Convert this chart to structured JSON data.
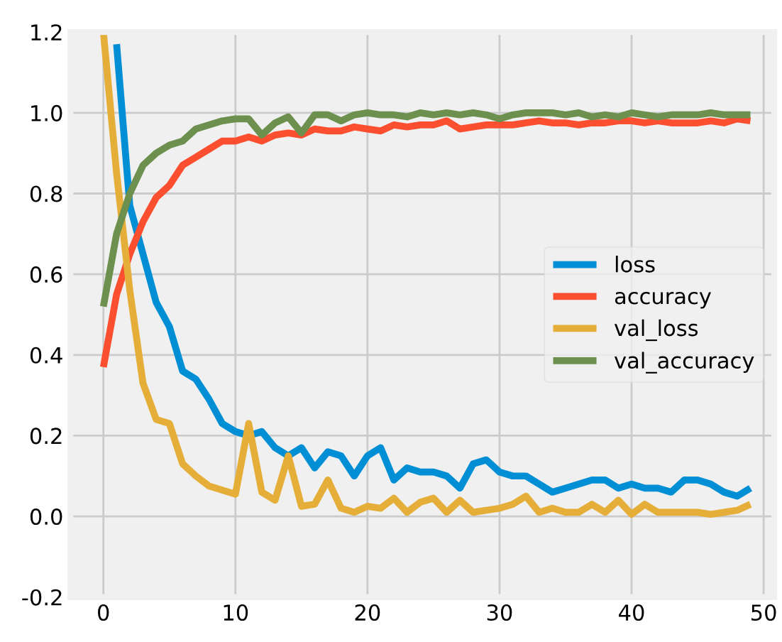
{
  "chart_data": {
    "type": "line",
    "x": [
      0,
      1,
      2,
      3,
      4,
      5,
      6,
      7,
      8,
      9,
      10,
      11,
      12,
      13,
      14,
      15,
      16,
      17,
      18,
      19,
      20,
      21,
      22,
      23,
      24,
      25,
      26,
      27,
      28,
      29,
      30,
      31,
      32,
      33,
      34,
      35,
      36,
      37,
      38,
      39,
      40,
      41,
      42,
      43,
      44,
      45,
      46,
      47,
      48,
      49
    ],
    "series": [
      {
        "name": "loss",
        "color": "#008fd5",
        "values": [
          null,
          1.17,
          0.77,
          0.65,
          0.53,
          0.47,
          0.36,
          0.34,
          0.29,
          0.23,
          0.21,
          0.2,
          0.21,
          0.17,
          0.15,
          0.17,
          0.12,
          0.16,
          0.15,
          0.1,
          0.15,
          0.17,
          0.09,
          0.12,
          0.11,
          0.11,
          0.1,
          0.07,
          0.13,
          0.14,
          0.11,
          0.1,
          0.1,
          0.08,
          0.06,
          0.07,
          0.08,
          0.09,
          0.09,
          0.07,
          0.08,
          0.07,
          0.07,
          0.06,
          0.09,
          0.09,
          0.08,
          0.06,
          0.05,
          0.07
        ]
      },
      {
        "name": "accuracy",
        "color": "#fc4f30",
        "values": [
          0.37,
          0.55,
          0.65,
          0.73,
          0.79,
          0.82,
          0.87,
          0.89,
          0.91,
          0.93,
          0.93,
          0.94,
          0.93,
          0.945,
          0.95,
          0.945,
          0.96,
          0.955,
          0.955,
          0.965,
          0.96,
          0.955,
          0.97,
          0.965,
          0.97,
          0.97,
          0.98,
          0.96,
          0.965,
          0.97,
          0.97,
          0.97,
          0.975,
          0.98,
          0.975,
          0.975,
          0.97,
          0.975,
          0.975,
          0.98,
          0.98,
          0.975,
          0.98,
          0.975,
          0.975,
          0.975,
          0.98,
          0.975,
          0.985,
          0.98
        ]
      },
      {
        "name": "val_loss",
        "color": "#e5ae38",
        "values": [
          1.2,
          0.85,
          0.56,
          0.33,
          0.24,
          0.23,
          0.13,
          0.1,
          0.075,
          0.065,
          0.055,
          0.23,
          0.06,
          0.04,
          0.15,
          0.025,
          0.03,
          0.09,
          0.02,
          0.01,
          0.025,
          0.02,
          0.045,
          0.01,
          0.035,
          0.045,
          0.01,
          0.04,
          0.01,
          0.015,
          0.02,
          0.03,
          0.05,
          0.01,
          0.02,
          0.01,
          0.01,
          0.03,
          0.01,
          0.04,
          0.005,
          0.03,
          0.01,
          0.01,
          0.01,
          0.01,
          0.005,
          0.01,
          0.015,
          0.03
        ]
      },
      {
        "name": "val_accuracy",
        "color": "#6d904f",
        "values": [
          0.52,
          0.7,
          0.8,
          0.87,
          0.9,
          0.92,
          0.93,
          0.96,
          0.97,
          0.98,
          0.985,
          0.985,
          0.945,
          0.975,
          0.99,
          0.95,
          0.995,
          0.995,
          0.98,
          0.995,
          1.0,
          0.995,
          0.995,
          0.99,
          1.0,
          0.995,
          1.0,
          0.995,
          1.0,
          0.995,
          0.985,
          0.995,
          1.0,
          1.0,
          1.0,
          0.995,
          1.0,
          0.99,
          0.995,
          0.99,
          1.0,
          0.995,
          0.99,
          0.995,
          0.995,
          0.995,
          1.0,
          0.995,
          0.995,
          0.995
        ]
      }
    ],
    "xlim": [
      -2.5,
      50.8
    ],
    "xticks": [
      0,
      10,
      20,
      30,
      40,
      50
    ],
    "ylim": [
      -0.2,
      1.2
    ],
    "yticks": [
      -0.2,
      {
        "value": 0,
        "label": "0.0"
      },
      0.2,
      0.4,
      0.6,
      0.8,
      {
        "value": 1,
        "label": "1.0"
      },
      1.2
    ],
    "grid": true,
    "legend": "center right",
    "marker": "none",
    "line_style": "solid"
  }
}
